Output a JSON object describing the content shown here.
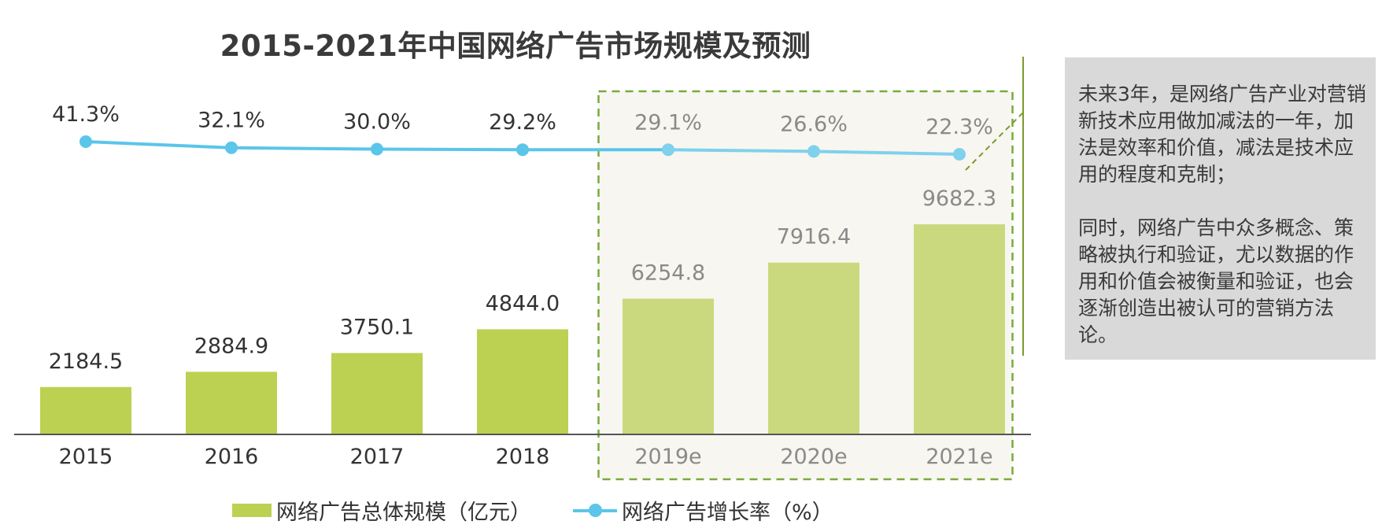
{
  "title": "2015-2021年中国网络广告市场规模及预测",
  "chart_data": {
    "type": "bar",
    "categories": [
      "2015",
      "2016",
      "2017",
      "2018",
      "2019e",
      "2020e",
      "2021e"
    ],
    "forecast_from_index": 4,
    "series": [
      {
        "name": "网络广告总体规模（亿元）",
        "type": "bar",
        "values": [
          2184.5,
          2884.9,
          3750.1,
          4844.0,
          6254.8,
          7916.4,
          9682.3
        ],
        "labels": [
          "2184.5",
          "2884.9",
          "3750.1",
          "4844.0",
          "6254.8",
          "7916.4",
          "9682.3"
        ],
        "color": "#bcd152",
        "forecast_color": "#cbd97e"
      },
      {
        "name": "网络广告增长率（%）",
        "type": "line",
        "values": [
          41.3,
          32.1,
          30.0,
          29.2,
          29.1,
          26.6,
          22.3
        ],
        "labels": [
          "41.3%",
          "32.1%",
          "30.0%",
          "29.2%",
          "29.1%",
          "26.6%",
          "22.3%"
        ],
        "color": "#5bc5ea",
        "forecast_color": "#7fd1ec"
      }
    ],
    "ylim_bar": [
      0,
      11000
    ],
    "ylim_line": [
      20,
      45
    ],
    "grid": false,
    "legend_position": "bottom"
  },
  "legend": {
    "bar_label": "网络广告总体规模（亿元）",
    "line_label": "网络广告增长率（%）"
  },
  "note": {
    "para1": "未来3年，是网络广告产业对营销新技术应用做加减法的一年，加法是效率和价值，减法是技术应用的程度和克制；",
    "para2": "同时，网络广告中众多概念、策略被执行和验证，尤以数据的作用和价值会被衡量和验证，也会逐渐创造出被认可的营销方法论。"
  },
  "colors": {
    "forecast_region_fill": "#f7f6f1",
    "forecast_region_border": "#7aaa3a",
    "axis": "#555555",
    "callout_line": "#7d9a2e"
  }
}
